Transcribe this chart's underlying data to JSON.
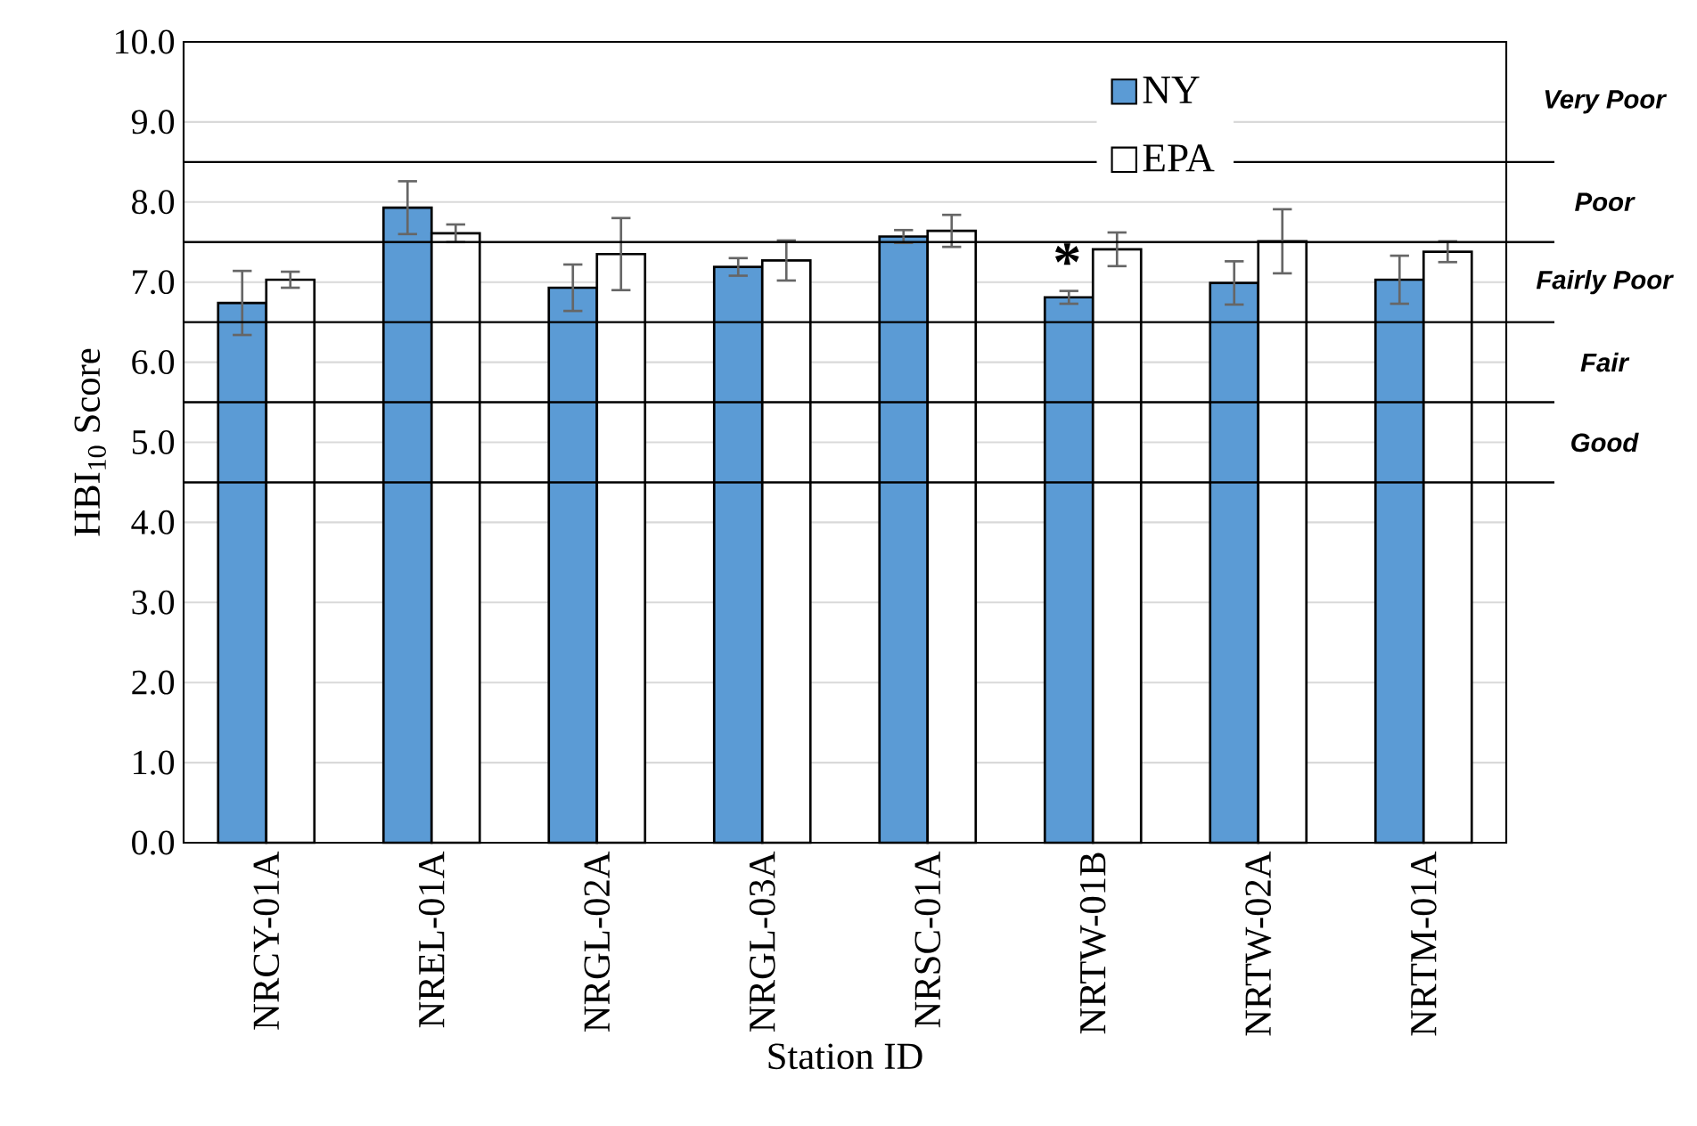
{
  "chart_data": {
    "type": "bar",
    "xlabel": "Station ID",
    "ylabel": "HBI$_{10}$ Score",
    "categories": [
      "NRCY-01A",
      "NREL-01A",
      "NRGL-02A",
      "NRGL-03A",
      "NRSC-01A",
      "NRTW-01B",
      "NRTW-02A",
      "NRTM-01A"
    ],
    "series": [
      {
        "name": "NY",
        "color": "#5b9bd5",
        "values": [
          6.74,
          7.93,
          6.93,
          7.19,
          7.57,
          6.81,
          6.99,
          7.03
        ],
        "errors": [
          0.4,
          0.33,
          0.29,
          0.11,
          0.08,
          0.08,
          0.27,
          0.3
        ]
      },
      {
        "name": "EPA",
        "color": "#ffffff",
        "values": [
          7.03,
          7.61,
          7.35,
          7.27,
          7.64,
          7.41,
          7.51,
          7.38
        ],
        "errors": [
          0.1,
          0.11,
          0.45,
          0.25,
          0.2,
          0.21,
          0.4,
          0.13
        ]
      }
    ],
    "ylim": [
      0,
      10
    ],
    "yticks": [
      {
        "value": 0,
        "label": "0.0"
      },
      {
        "value": 1,
        "label": "1.0"
      },
      {
        "value": 2,
        "label": "2.0"
      },
      {
        "value": 3,
        "label": "3.0"
      },
      {
        "value": 4,
        "label": "4.0"
      },
      {
        "value": 5,
        "label": "5.0"
      },
      {
        "value": 6,
        "label": "6.0"
      },
      {
        "value": 7,
        "label": "7.0"
      },
      {
        "value": 8,
        "label": "8.0"
      },
      {
        "value": 9,
        "label": "9.0"
      },
      {
        "value": 10,
        "label": "10.0"
      }
    ],
    "grid": "y",
    "legend": "top",
    "ref_lines": [
      {
        "axis": "y",
        "value": 8.5
      },
      {
        "axis": "y",
        "value": 7.5
      },
      {
        "axis": "y",
        "value": 6.5
      },
      {
        "axis": "y",
        "value": 5.5
      },
      {
        "axis": "y",
        "value": 4.5
      }
    ],
    "annotations": [
      "*",
      "Very Poor",
      "Poor",
      "Fairly Poor",
      "Fair",
      "Good"
    ]
  }
}
